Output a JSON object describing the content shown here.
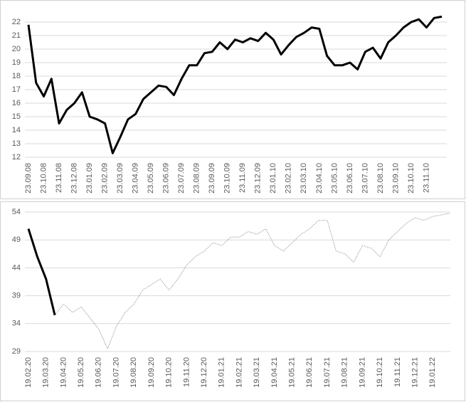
{
  "chart_data": [
    {
      "type": "line",
      "categories": [
        "23.09.08",
        null,
        "23.10.08",
        null,
        "23.11.08",
        null,
        "23.12.08",
        null,
        "23.01.09",
        null,
        "23.02.09",
        null,
        "23.03.09",
        null,
        "23.04.09",
        null,
        "23.05.09",
        null,
        "23.06.09",
        null,
        "23.07.09",
        null,
        "23.08.09",
        null,
        "23.09.09",
        null,
        "23.10.09",
        null,
        "23.11.09",
        null,
        "23.12.09",
        null,
        "23.01.10",
        null,
        "23.02.10",
        null,
        "23.03.10",
        null,
        "23.04.10",
        null,
        "23.05.10",
        null,
        "23.06.10",
        null,
        "23.07.10",
        null,
        "23.08.10",
        null,
        "23.09.10",
        null,
        "23.10.10",
        null,
        "23.11.10",
        null,
        null
      ],
      "series": [
        {
          "color": "#000000",
          "line_style": "solid",
          "values": [
            21.8,
            17.5,
            16.5,
            17.8,
            14.5,
            15.5,
            16,
            16.8,
            15,
            14.8,
            14.5,
            12.3,
            13.5,
            14.8,
            15.2,
            16.3,
            16.8,
            17.3,
            17.2,
            16.6,
            17.8,
            18.8,
            18.8,
            19.7,
            19.8,
            20.5,
            20.0,
            20.7,
            20.5,
            20.8,
            20.6,
            21.2,
            20.7,
            19.6,
            20.3,
            20.9,
            21.2,
            21.6,
            21.5,
            19.5,
            18.8,
            18.8,
            19.0,
            18.5,
            19.8,
            20.1,
            19.3,
            20.5,
            21.0,
            21.6,
            22.0,
            22.2,
            21.6,
            22.3,
            22.4
          ]
        }
      ],
      "ylim": [
        12,
        22
      ],
      "yticks": [
        12,
        13,
        14,
        15,
        16,
        17,
        18,
        19,
        20,
        21,
        22
      ],
      "grid": true
    },
    {
      "type": "line",
      "categories": [
        "19.02.20",
        null,
        "19.03.20",
        null,
        "19.04.20",
        null,
        "19.05.20",
        null,
        "19.06.20",
        null,
        "19.07.20",
        null,
        "19.08.20",
        null,
        "19.09.20",
        null,
        "19.10.20",
        null,
        "19.11.20",
        null,
        "19.12.20",
        null,
        "19.01.21",
        null,
        "19.02.21",
        null,
        "19.03.21",
        null,
        "19.04.21",
        null,
        "19.05.21",
        null,
        "19.06.21",
        null,
        "19.07.21",
        null,
        "19.08.21",
        null,
        "19.09.21",
        null,
        "19.10.21",
        null,
        "19.11.21",
        null,
        "19.12.21",
        null,
        "19.01.22",
        null,
        null
      ],
      "series": [
        {
          "color": "#000000",
          "line_style": "solid",
          "values": [
            51,
            46,
            42,
            35.5,
            null,
            null,
            null,
            null,
            null,
            null,
            null,
            null,
            null,
            null,
            null,
            null,
            null,
            null,
            null,
            null,
            null,
            null,
            null,
            null,
            null,
            null,
            null,
            null,
            null,
            null,
            null,
            null,
            null,
            null,
            null,
            null,
            null,
            null,
            null,
            null,
            null,
            null,
            null,
            null,
            null,
            null,
            null,
            null,
            null
          ]
        },
        {
          "color": "#7f7f7f",
          "line_style": "dotted",
          "values": [
            null,
            null,
            null,
            35.5,
            37.5,
            36,
            37,
            35,
            33,
            29.5,
            33.5,
            36,
            37.5,
            40,
            41,
            42,
            40,
            42,
            44.5,
            46,
            47,
            48.5,
            48,
            49.5,
            49.5,
            50.5,
            50,
            51,
            48,
            47,
            48.5,
            50,
            51,
            52.5,
            52.5,
            47,
            46.5,
            45,
            48,
            47.5,
            46,
            49,
            50.5,
            52,
            53,
            52.5,
            53.2,
            53.5,
            53.8
          ]
        }
      ],
      "ylim": [
        29,
        54
      ],
      "yticks": [
        29,
        34,
        39,
        44,
        49,
        54
      ],
      "grid": true
    }
  ]
}
